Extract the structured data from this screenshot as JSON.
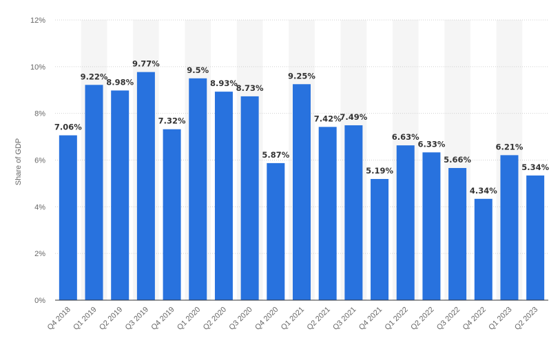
{
  "chart_data": {
    "type": "bar",
    "title": "",
    "xlabel": "",
    "ylabel": "Share of GDP",
    "categories": [
      "Q4 2018",
      "Q1 2019",
      "Q2 2019",
      "Q3 2019",
      "Q4 2019",
      "Q1 2020",
      "Q2 2020",
      "Q3 2020",
      "Q4 2020",
      "Q1 2021",
      "Q2 2021",
      "Q3 2021",
      "Q4 2021",
      "Q1 2022",
      "Q2 2022",
      "Q3 2022",
      "Q4 2022",
      "Q1 2023",
      "Q2 2023"
    ],
    "values": [
      7.06,
      9.22,
      8.98,
      9.77,
      7.32,
      9.5,
      8.93,
      8.73,
      5.87,
      9.25,
      7.42,
      7.49,
      5.19,
      6.63,
      6.33,
      5.66,
      4.34,
      6.21,
      5.34
    ],
    "data_labels": [
      "7.06%",
      "9.22%",
      "8.98%",
      "9.77%",
      "7.32%",
      "9.5%",
      "8.93%",
      "8.73%",
      "5.87%",
      "9.25%",
      "7.42%",
      "7.49%",
      "5.19%",
      "6.63%",
      "6.33%",
      "5.66%",
      "4.34%",
      "6.21%",
      "5.34%"
    ],
    "yticks": [
      0,
      2,
      4,
      6,
      8,
      10,
      12
    ],
    "ytick_labels": [
      "0%",
      "2%",
      "4%",
      "6%",
      "8%",
      "10%",
      "12%"
    ],
    "ylim": [
      0,
      12
    ],
    "grid": true,
    "alternating_bands": true,
    "legend": "none",
    "bar_color": "#2872DE",
    "band_color": "#f5f5f5"
  }
}
